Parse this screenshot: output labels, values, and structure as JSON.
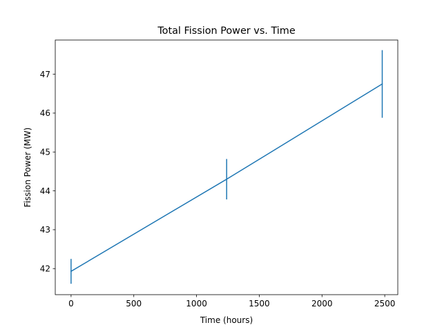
{
  "chart_data": {
    "type": "line",
    "title": "Total Fission Power vs. Time",
    "xlabel": "Time (hours)",
    "ylabel": "Fission Power (MW)",
    "xlim": [
      -126,
      2604
    ],
    "ylim": [
      41.33,
      47.88
    ],
    "xticks": [
      0,
      500,
      1000,
      1500,
      2000,
      2500
    ],
    "xtick_labels": [
      "0",
      "500",
      "1000",
      "1500",
      "2000",
      "2500"
    ],
    "yticks": [
      42,
      43,
      44,
      45,
      46,
      47
    ],
    "ytick_labels": [
      "42",
      "43",
      "44",
      "45",
      "46",
      "47"
    ],
    "grid": false,
    "series": [
      {
        "x": [
          0,
          1240,
          2480
        ],
        "y": [
          41.93,
          44.3,
          46.75
        ],
        "yerr": [
          0.32,
          0.52,
          0.87
        ]
      }
    ],
    "colors": {
      "line": "#1f77b4",
      "axes": "#000000",
      "background": "#ffffff"
    }
  }
}
